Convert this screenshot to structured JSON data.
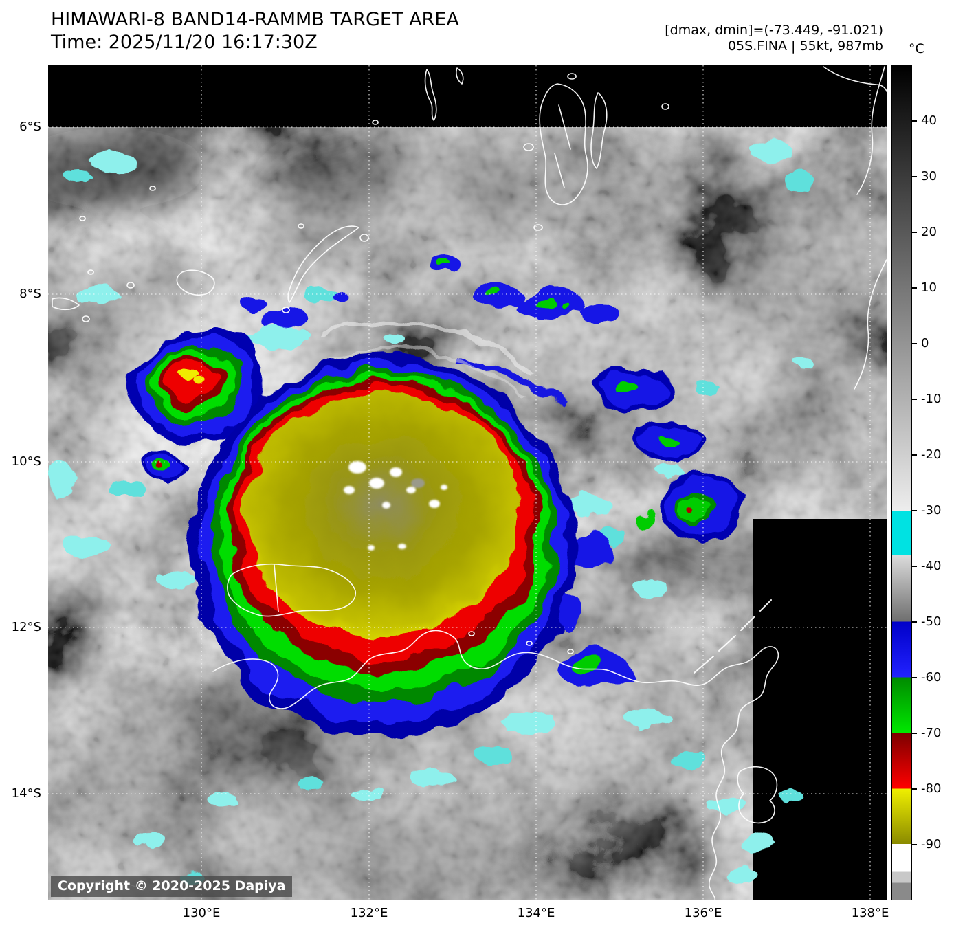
{
  "header": {
    "title": "HIMAWARI-8 BAND14-RAMMB TARGET AREA",
    "time_line": "Time: 2025/11/20 16:17:30Z",
    "dmax_dmin": "[dmax, dmin]=(-73.449, -91.021)",
    "storm_line": "05S.FINA | 55kt, 987mb"
  },
  "map": {
    "copyright": "Copyright © 2020-2025 Dapiya",
    "lat_labels": [
      "6°S",
      "8°S",
      "10°S",
      "12°S",
      "14°S"
    ],
    "lon_labels": [
      "130°E",
      "132°E",
      "134°E",
      "136°E",
      "138°E"
    ]
  },
  "colorbar": {
    "unit": "°C",
    "ticks": [
      "40",
      "30",
      "20",
      "10",
      "0",
      "-10",
      "-20",
      "-30",
      "-40",
      "-50",
      "-60",
      "-70",
      "-80",
      "-90"
    ],
    "domain": [
      50,
      -100
    ],
    "segments": [
      {
        "from": 50,
        "to": -30,
        "c1": "#000000",
        "c2": "#ededed"
      },
      {
        "from": -30,
        "to": -38,
        "c1": "#00e2e2",
        "c2": "#00e2e2"
      },
      {
        "from": -38,
        "to": -50,
        "c1": "#dcdcdc",
        "c2": "#6e6e6e"
      },
      {
        "from": -50,
        "to": -60,
        "c1": "#0000c8",
        "c2": "#2222ff"
      },
      {
        "from": -60,
        "to": -70,
        "c1": "#008a00",
        "c2": "#00e800"
      },
      {
        "from": -70,
        "to": -80,
        "c1": "#7c0000",
        "c2": "#ff0000"
      },
      {
        "from": -80,
        "to": -90,
        "c1": "#f0f000",
        "c2": "#8a8a00"
      },
      {
        "from": -90,
        "to": -95,
        "c1": "#ffffff",
        "c2": "#ffffff"
      },
      {
        "from": -95,
        "to": -97,
        "c1": "#c8c8c8",
        "c2": "#c8c8c8"
      },
      {
        "from": -97,
        "to": -100,
        "c1": "#8a8a8a",
        "c2": "#8a8a8a"
      }
    ]
  }
}
